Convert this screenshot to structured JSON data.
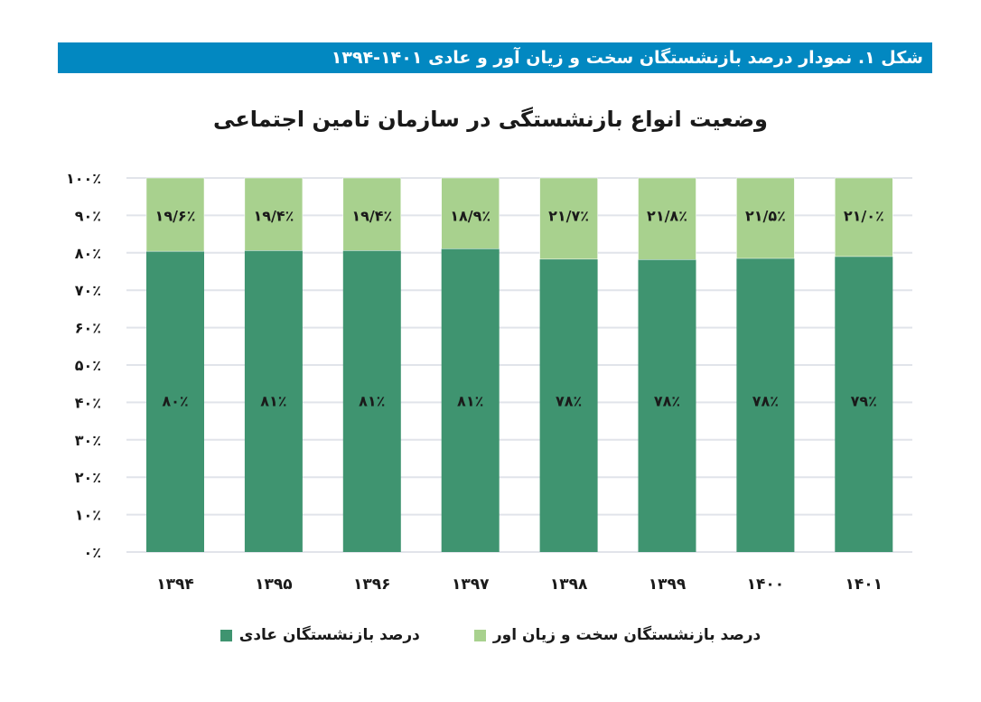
{
  "header": {
    "caption": "شکل ۱. نمودار درصد بازنشستگان سخت و زیان آور و عادی ۱۴۰۱-۱۳۹۴"
  },
  "colors": {
    "header": "#0288c1",
    "normal": "#3f9470",
    "hard": "#a8d18e",
    "grid": "#e1e4ea"
  },
  "chart_data": {
    "type": "bar",
    "stacked": true,
    "title": "وضعیت انواع بازنشستگی در سازمان تامین اجتماعی",
    "categories": [
      "۱۳۹۴",
      "۱۳۹۵",
      "۱۳۹۶",
      "۱۳۹۷",
      "۱۳۹۸",
      "۱۳۹۹",
      "۱۴۰۰",
      "۱۴۰۱"
    ],
    "categories_numeric": [
      1394,
      1395,
      1396,
      1397,
      1398,
      1399,
      1400,
      1401
    ],
    "ylim": [
      0,
      100
    ],
    "yticks": [
      0,
      10,
      20,
      30,
      40,
      50,
      60,
      70,
      80,
      90,
      100
    ],
    "ytick_labels": [
      "۰٪",
      "۱۰٪",
      "۲۰٪",
      "۳۰٪",
      "۴۰٪",
      "۵۰٪",
      "۶۰٪",
      "۷۰٪",
      "۸۰٪",
      "۹۰٪",
      "۱۰۰٪"
    ],
    "grid": true,
    "legend_position": "bottom",
    "series": [
      {
        "name": "درصد بازنشستگان عادی",
        "color": "#3f9470",
        "values": [
          80,
          81,
          81,
          81,
          78,
          78,
          78,
          79
        ],
        "labels": [
          "۸۰٪",
          "۸۱٪",
          "۸۱٪",
          "۸۱٪",
          "۷۸٪",
          "۷۸٪",
          "۷۸٪",
          "۷۹٪"
        ]
      },
      {
        "name": "درصد بازنشستگان سخت و زیان اور",
        "color": "#a8d18e",
        "values": [
          19.6,
          19.4,
          19.4,
          18.9,
          21.7,
          21.8,
          21.5,
          21.0
        ],
        "labels": [
          "۱۹/۶٪",
          "۱۹/۴٪",
          "۱۹/۴٪",
          "۱۸/۹٪",
          "۲۱/۷٪",
          "۲۱/۸٪",
          "۲۱/۵٪",
          "۲۱/۰٪"
        ]
      }
    ]
  }
}
